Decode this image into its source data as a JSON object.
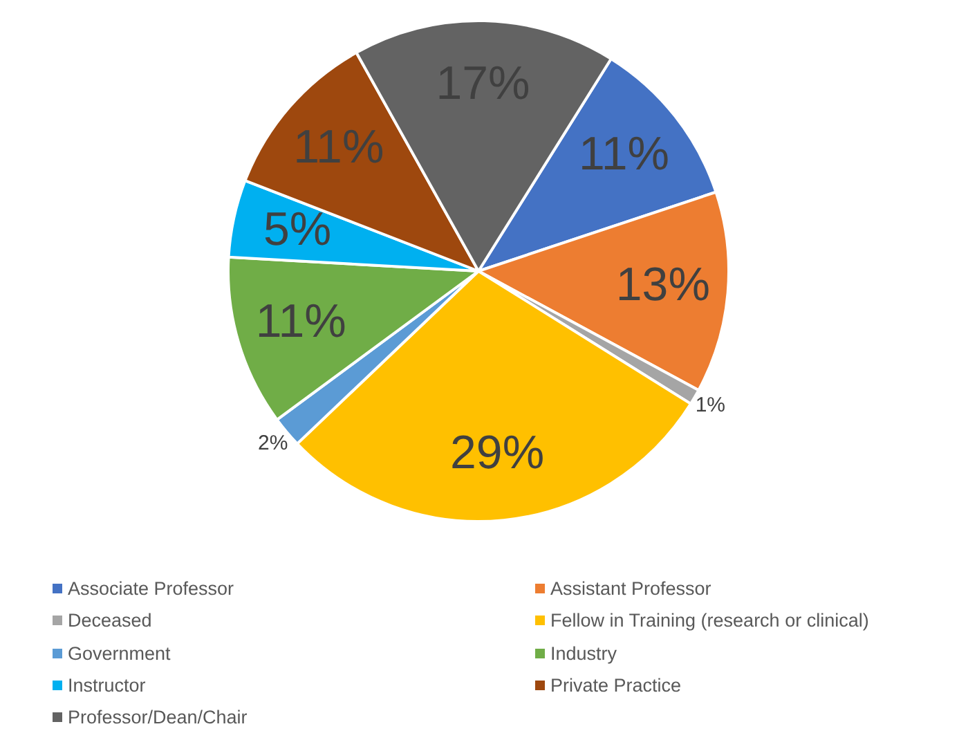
{
  "chart_data": {
    "type": "pie",
    "categories": [
      "Associate Professor",
      "Assistant Professor",
      "Deceased",
      "Fellow in Training (research or clinical)",
      "Government",
      "Industry",
      "Instructor",
      "Private Practice",
      "Professor/Dean/Chair"
    ],
    "values": [
      11,
      13,
      1,
      29,
      2,
      11,
      5,
      11,
      17
    ],
    "colors": [
      "#4472c4",
      "#ed7d31",
      "#a5a5a5",
      "#ffc000",
      "#5b9bd5",
      "#70ad47",
      "#00b0f0",
      "#9e480e",
      "#636363"
    ],
    "value_labels": [
      "11%",
      "13%",
      "1%",
      "29%",
      "2%",
      "11%",
      "5%",
      "11%",
      "17%"
    ],
    "legend": "bottom"
  }
}
